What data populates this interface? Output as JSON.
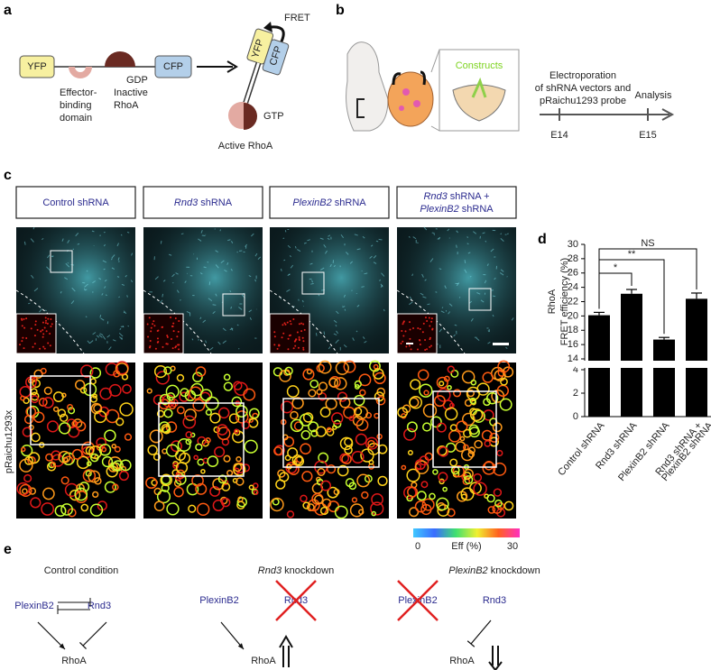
{
  "panel_labels": [
    "a",
    "b",
    "c",
    "d",
    "e"
  ],
  "panel_a": {
    "inactive_probe": {
      "yfp": "YFP",
      "cfp": "CFP",
      "domain": [
        "Effector-",
        "binding",
        "domain"
      ],
      "gdp": "GDP",
      "rhoa": [
        "Inactive",
        "RhoA"
      ]
    },
    "active_probe": {
      "fret": "FRET",
      "yfp": "YFP",
      "cfp": "CFP",
      "gtp": "GTP",
      "rhoa": "Active RhoA"
    }
  },
  "panel_b": {
    "inset": "Constructs",
    "step1": [
      "Electroporation",
      "of shRNA vectors and",
      "pRaichu1293 probe"
    ],
    "step2": "Analysis",
    "timepoints": [
      "E14",
      "E15"
    ]
  },
  "panel_c": {
    "conditions": [
      [
        [
          {
            "text": "Control shRNA"
          }
        ]
      ],
      [
        [
          {
            "text": "Rnd3",
            "italic": true
          },
          {
            "text": " shRNA"
          }
        ]
      ],
      [
        [
          {
            "text": "PlexinB2",
            "italic": true
          },
          {
            "text": " shRNA"
          }
        ]
      ],
      [
        [
          {
            "text": "Rnd3",
            "italic": true
          },
          {
            "text": " shRNA +"
          }
        ],
        [
          {
            "text": "PlexinB2",
            "italic": true
          },
          {
            "text": " shRNA"
          }
        ]
      ]
    ],
    "row_label": "pRaichu1293x",
    "colorbar": {
      "min": "0",
      "label": "Eff (%)",
      "max": "30"
    }
  },
  "panel_e": {
    "scenarios": [
      {
        "title": [
          {
            "text": "Control condition"
          }
        ],
        "plexinb2": "PlexinB2",
        "rnd3": "Rnd3",
        "rhoa": "RhoA"
      },
      {
        "title": [
          {
            "text": "Rnd3",
            "italic": true
          },
          {
            "text": " knockdown"
          }
        ],
        "plexinb2": "PlexinB2",
        "rnd3": "Rnd3",
        "rhoa": "RhoA"
      },
      {
        "title": [
          {
            "text": "PlexinB2",
            "italic": true
          },
          {
            "text": " knockdown"
          }
        ],
        "plexinb2": "PlexinB2",
        "rnd3": "Rnd3",
        "rhoa": "RhoA"
      }
    ]
  },
  "chart_data": {
    "type": "bar",
    "categories": [
      [
        "Control shRNA"
      ],
      [
        "Rnd3 shRNA"
      ],
      [
        "PlexinB2 shRNA"
      ],
      [
        "Rnd3 shRNA +",
        "PlexinB2 shRNA"
      ]
    ],
    "values": [
      20.1,
      23.1,
      16.7,
      22.4
    ],
    "errors": [
      0.4,
      0.6,
      0.3,
      0.8
    ],
    "color": "#000000",
    "y_label": [
      "RhoA",
      "FRET efficiency (%)"
    ],
    "ylim": [
      0,
      30
    ],
    "axis_break": [
      4,
      14
    ],
    "yticks": [
      0,
      2,
      4,
      14,
      16,
      18,
      20,
      22,
      24,
      26,
      28,
      30
    ],
    "annotations": [
      "*",
      "**",
      "NS"
    ]
  }
}
